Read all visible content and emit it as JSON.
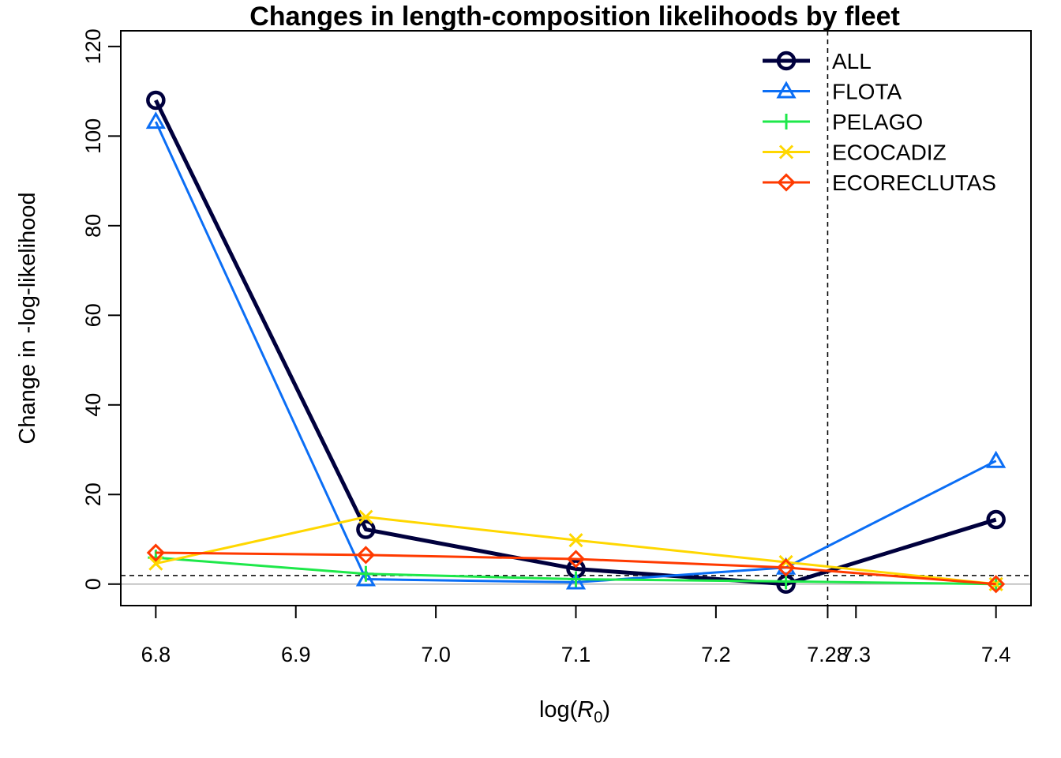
{
  "chart_data": {
    "type": "line",
    "title": "Changes in length-composition likelihoods by fleet",
    "xlabel": "log(",
    "xlabel_symbol": "R",
    "xlabel_subscript": "0",
    "xlabel_suffix": ")",
    "ylabel": "Change in -log-likelihood",
    "xlim": [
      6.775,
      7.425
    ],
    "ylim": [
      -4.8,
      123.5
    ],
    "x_ticks": [
      6.8,
      6.9,
      7.0,
      7.1,
      7.2,
      7.3,
      7.4
    ],
    "x_tick_labels": [
      "6.8",
      "6.9",
      "7.0",
      "7.1",
      "7.2",
      "7.3",
      "7.4"
    ],
    "y_ticks": [
      0,
      20,
      40,
      60,
      80,
      100,
      120
    ],
    "y_tick_labels": [
      "0",
      "20",
      "40",
      "60",
      "80",
      "100",
      "120"
    ],
    "mle_x": 7.2798,
    "mle_label": "7.28",
    "threshold_y": 1.92,
    "zero_line_y": 0,
    "x": [
      6.8,
      6.95,
      7.1,
      7.25,
      7.4
    ],
    "series": [
      {
        "name": "ALL",
        "color": "#00003D",
        "marker": "circle",
        "values": [
          108,
          12.2,
          3.4,
          0,
          14.4
        ]
      },
      {
        "name": "FLOTA",
        "color": "#0B6EF5",
        "marker": "triangle",
        "values": [
          103.2,
          1.1,
          0.4,
          3.7,
          27.5
        ]
      },
      {
        "name": "PELAGO",
        "color": "#1EE84A",
        "marker": "plus",
        "values": [
          5.9,
          2.3,
          1.1,
          0.6,
          0
        ]
      },
      {
        "name": "ECOCADIZ",
        "color": "#FFD700",
        "marker": "cross",
        "values": [
          4.6,
          15.0,
          9.8,
          4.9,
          0
        ]
      },
      {
        "name": "ECORECLUTAS",
        "color": "#FF3A00",
        "marker": "diamond",
        "values": [
          7.0,
          6.5,
          5.6,
          3.7,
          0
        ]
      }
    ],
    "legend_position": "top-right",
    "grid": false
  }
}
